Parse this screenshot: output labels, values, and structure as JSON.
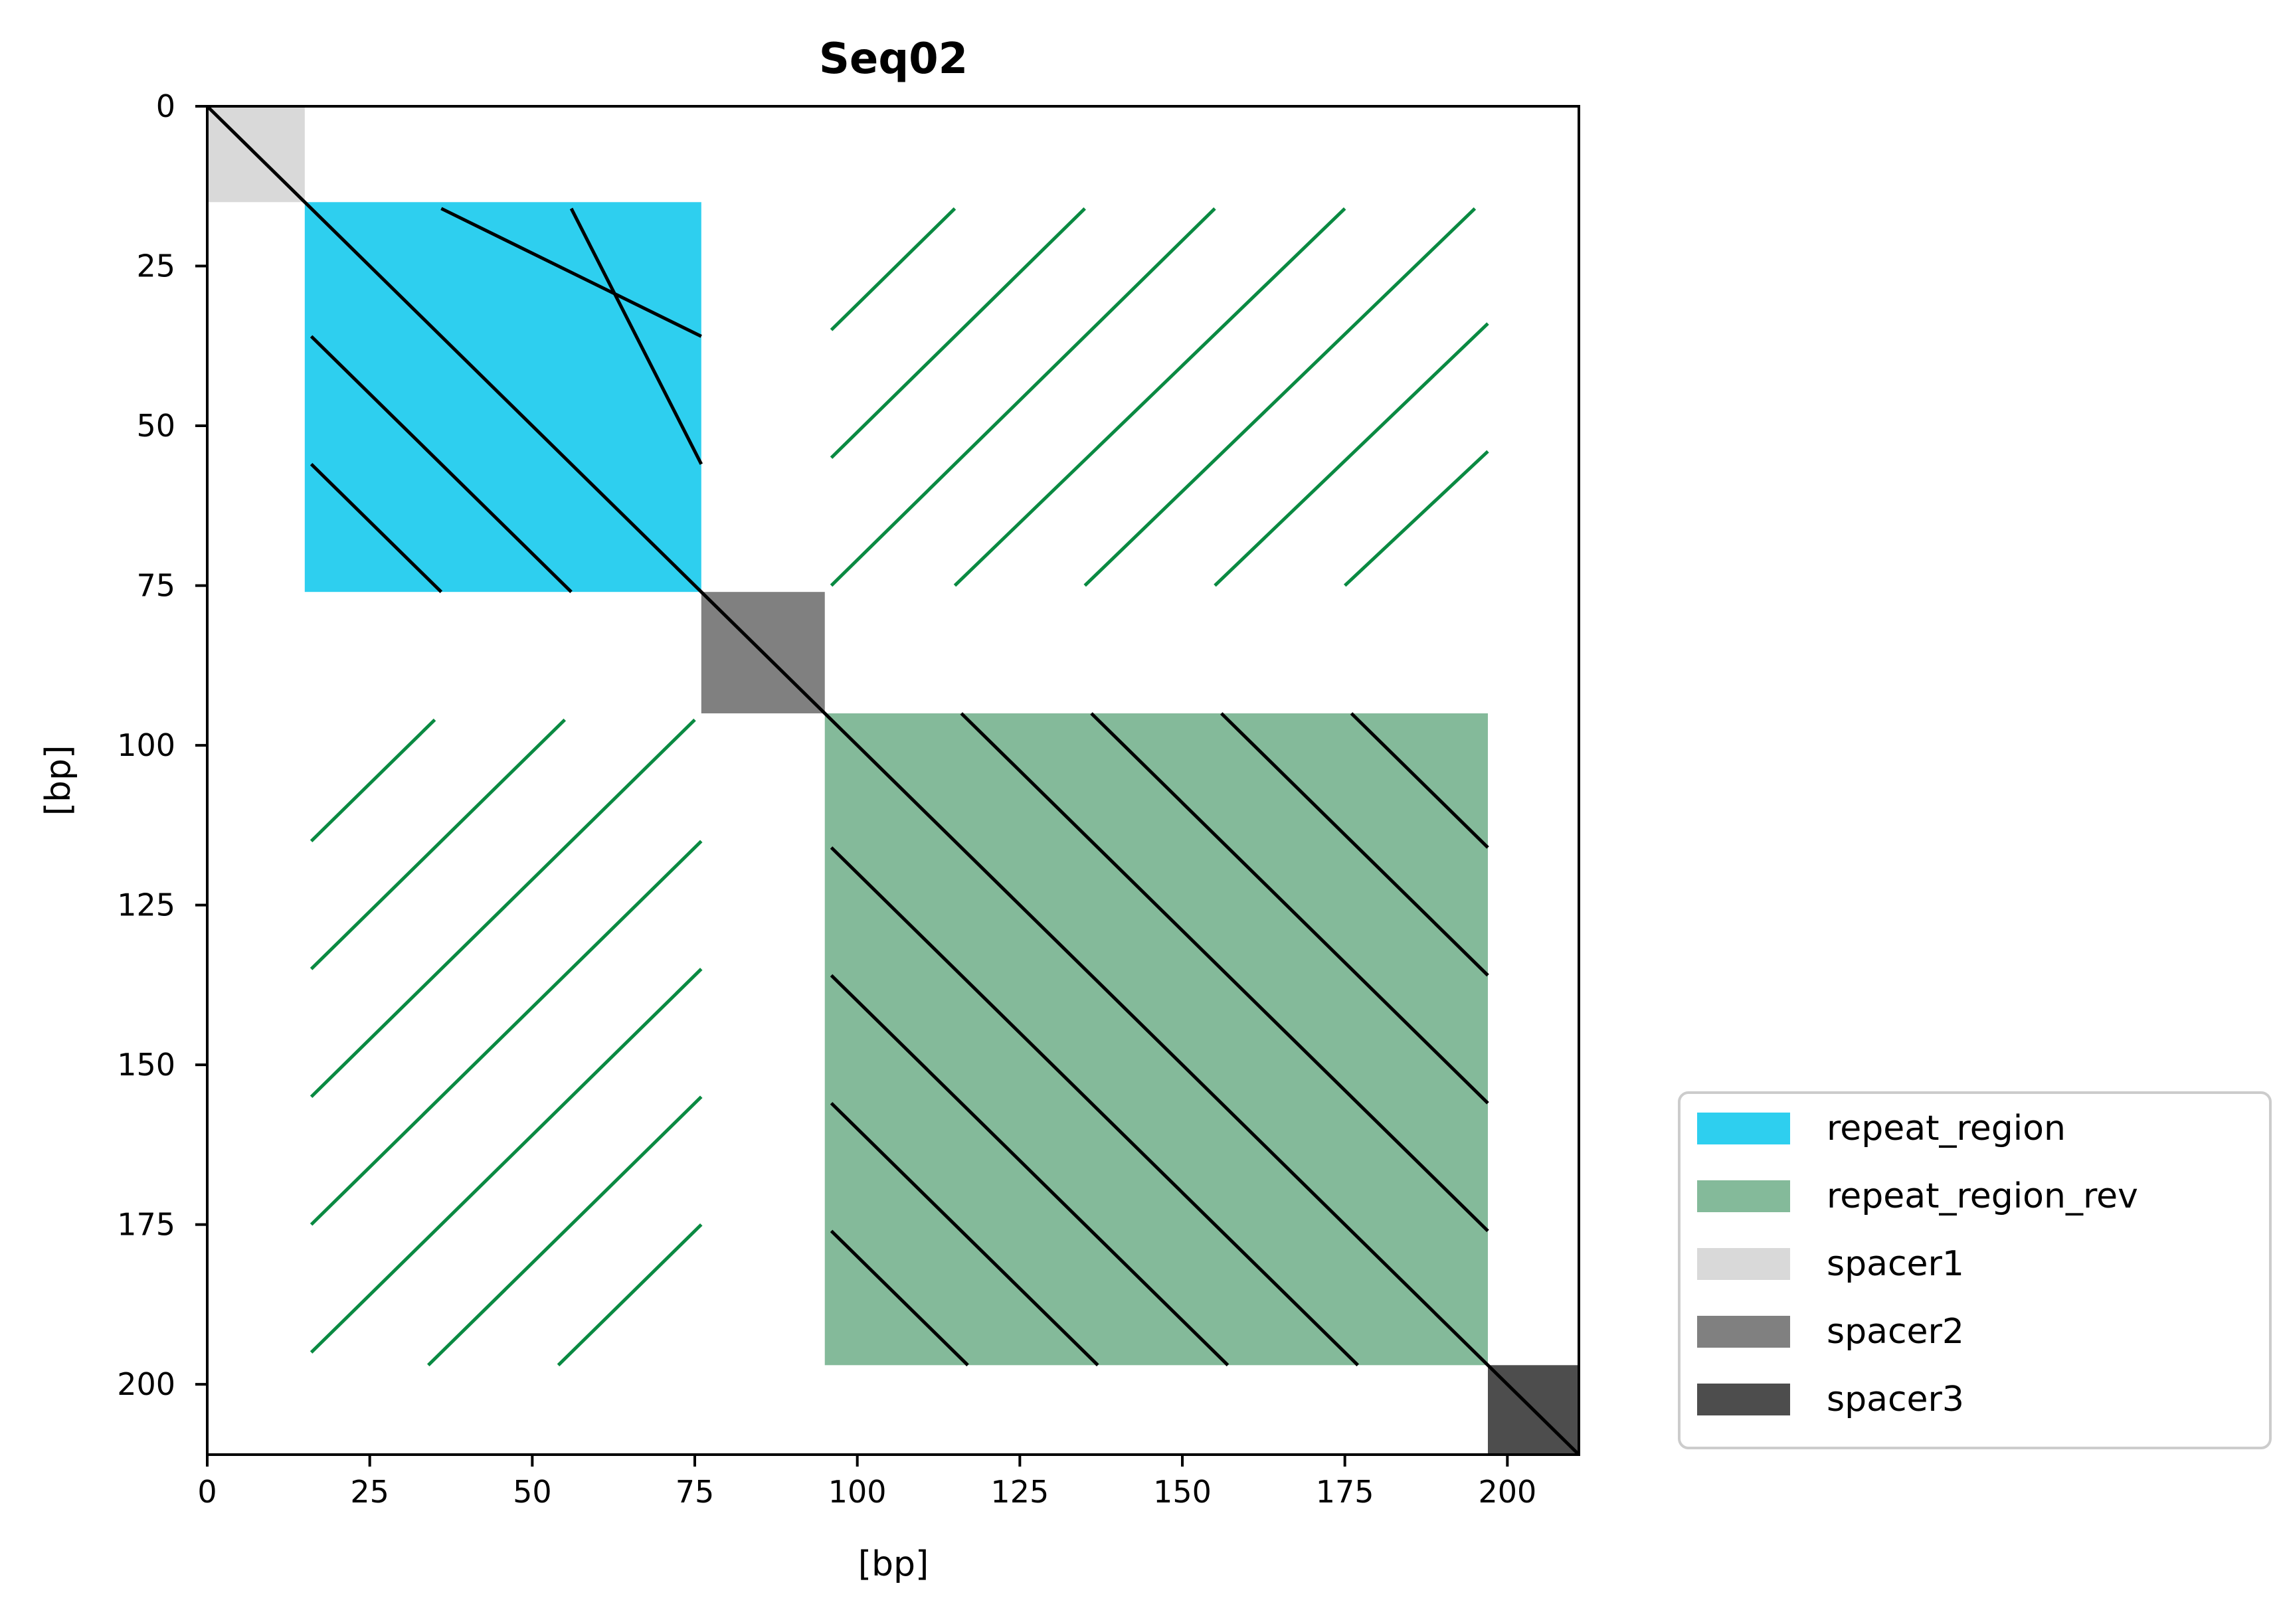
{
  "chart_data": {
    "type": "dotplot",
    "title": "Seq02",
    "xlabel": "[bp]",
    "ylabel": "[bp]",
    "xlim": [
      0,
      211
    ],
    "ylim": [
      0,
      211
    ],
    "y_inverted": true,
    "grid": false,
    "xticks": [
      0,
      25,
      50,
      75,
      100,
      125,
      150,
      175,
      200
    ],
    "yticks": [
      0,
      25,
      50,
      75,
      100,
      125,
      150,
      175,
      200
    ],
    "xtick_labels": [
      "0",
      "25",
      "50",
      "75",
      "100",
      "125",
      "150",
      "175",
      "200"
    ],
    "ytick_labels": [
      "0",
      "25",
      "50",
      "75",
      "100",
      "125",
      "150",
      "175",
      "200"
    ],
    "legend": {
      "placement": "lower-right-outside",
      "entries": [
        {
          "label": "repeat_region",
          "color": "#2ECFEF"
        },
        {
          "label": "repeat_region_rev",
          "color": "#84BA9A"
        },
        {
          "label": "spacer1",
          "color": "#D9D9D9"
        },
        {
          "label": "spacer2",
          "color": "#808080"
        },
        {
          "label": "spacer3",
          "color": "#4D4D4D"
        }
      ]
    },
    "regions": [
      {
        "label": "spacer1",
        "start": 0,
        "end": 15
      },
      {
        "label": "repeat_region",
        "start": 15,
        "end": 76
      },
      {
        "label": "spacer2",
        "start": 76,
        "end": 95
      },
      {
        "label": "repeat_region_rev",
        "start": 95,
        "end": 197
      },
      {
        "label": "spacer3",
        "start": 197,
        "end": 211
      }
    ],
    "forward_matches": [
      {
        "x1": 0,
        "y1": 0,
        "x2": 211,
        "y2": 211
      },
      {
        "x1": 36,
        "y1": 16,
        "x2": 76,
        "y2": 36
      },
      {
        "x1": 56,
        "y1": 16,
        "x2": 76,
        "y2": 56
      },
      {
        "x1": 16,
        "y1": 36,
        "x2": 56,
        "y2": 76
      },
      {
        "x1": 16,
        "y1": 56,
        "x2": 36,
        "y2": 76
      },
      {
        "x1": 116,
        "y1": 95,
        "x2": 197,
        "y2": 176
      },
      {
        "x1": 136,
        "y1": 95,
        "x2": 197,
        "y2": 156
      },
      {
        "x1": 156,
        "y1": 95,
        "x2": 197,
        "y2": 136
      },
      {
        "x1": 176,
        "y1": 95,
        "x2": 197,
        "y2": 116
      },
      {
        "x1": 96,
        "y1": 116,
        "x2": 177,
        "y2": 197
      },
      {
        "x1": 96,
        "y1": 136,
        "x2": 157,
        "y2": 197
      },
      {
        "x1": 96,
        "y1": 156,
        "x2": 137,
        "y2": 197
      },
      {
        "x1": 96,
        "y1": 176,
        "x2": 117,
        "y2": 197
      }
    ],
    "reverse_matches": [
      {
        "x1": 96,
        "y1": 35,
        "x2": 115,
        "y2": 16
      },
      {
        "x1": 96,
        "y1": 55,
        "x2": 135,
        "y2": 16
      },
      {
        "x1": 96,
        "y1": 75,
        "x2": 155,
        "y2": 16
      },
      {
        "x1": 115,
        "y1": 75,
        "x2": 175,
        "y2": 16
      },
      {
        "x1": 135,
        "y1": 75,
        "x2": 195,
        "y2": 16
      },
      {
        "x1": 155,
        "y1": 75,
        "x2": 197,
        "y2": 34
      },
      {
        "x1": 175,
        "y1": 75,
        "x2": 197,
        "y2": 54
      },
      {
        "x1": 16,
        "y1": 115,
        "x2": 35,
        "y2": 96
      },
      {
        "x1": 16,
        "y1": 135,
        "x2": 55,
        "y2": 96
      },
      {
        "x1": 16,
        "y1": 155,
        "x2": 75,
        "y2": 96
      },
      {
        "x1": 16,
        "y1": 175,
        "x2": 76,
        "y2": 115
      },
      {
        "x1": 16,
        "y1": 195,
        "x2": 76,
        "y2": 135
      },
      {
        "x1": 34,
        "y1": 197,
        "x2": 76,
        "y2": 155
      },
      {
        "x1": 54,
        "y1": 197,
        "x2": 76,
        "y2": 175
      }
    ],
    "colors": {
      "forward_line": "#000000",
      "reverse_line": "#0A8A42"
    }
  }
}
